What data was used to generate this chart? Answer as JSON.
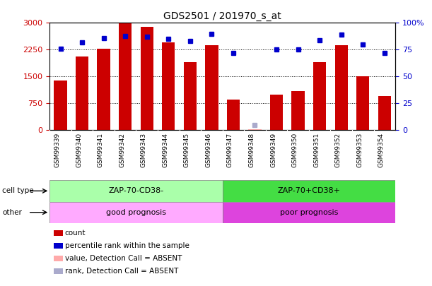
{
  "title": "GDS2501 / 201970_s_at",
  "samples": [
    "GSM99339",
    "GSM99340",
    "GSM99341",
    "GSM99342",
    "GSM99343",
    "GSM99344",
    "GSM99345",
    "GSM99346",
    "GSM99347",
    "GSM99348",
    "GSM99349",
    "GSM99350",
    "GSM99351",
    "GSM99352",
    "GSM99353",
    "GSM99354"
  ],
  "bar_values": [
    1380,
    2050,
    2280,
    3000,
    2880,
    2460,
    1900,
    2380,
    860,
    30,
    1000,
    1100,
    1900,
    2380,
    1500,
    950
  ],
  "rank_values": [
    76,
    82,
    86,
    88,
    87,
    85,
    83,
    90,
    72,
    null,
    75,
    75,
    84,
    89,
    80,
    72
  ],
  "absent_bar": [
    null,
    null,
    null,
    null,
    null,
    null,
    null,
    null,
    null,
    30,
    null,
    null,
    null,
    null,
    null,
    null
  ],
  "absent_rank": [
    null,
    null,
    null,
    null,
    null,
    null,
    null,
    null,
    null,
    5,
    null,
    null,
    null,
    null,
    null,
    null
  ],
  "bar_color": "#cc0000",
  "absent_bar_color": "#ffaaaa",
  "rank_color": "#0000cc",
  "absent_rank_color": "#aaaacc",
  "ylim_left": [
    0,
    3000
  ],
  "ylim_right": [
    0,
    100
  ],
  "yticks_left": [
    0,
    750,
    1500,
    2250,
    3000
  ],
  "ytick_labels_left": [
    "0",
    "750",
    "1500",
    "2250",
    "3000"
  ],
  "yticks_right": [
    0,
    25,
    50,
    75,
    100
  ],
  "ytick_labels_right": [
    "0",
    "25",
    "50",
    "75",
    "100%"
  ],
  "grid_lines": [
    750,
    1500,
    2250
  ],
  "cell_type_left": "ZAP-70-CD38-",
  "cell_type_right": "ZAP-70+CD38+",
  "other_left": "good prognosis",
  "other_right": "poor prognosis",
  "cell_type_left_color": "#aaffaa",
  "cell_type_right_color": "#44dd44",
  "other_left_color": "#ffaaff",
  "other_right_color": "#dd44dd",
  "split_index": 8,
  "legend_items": [
    {
      "color": "#cc0000",
      "label": "count"
    },
    {
      "color": "#0000cc",
      "label": "percentile rank within the sample"
    },
    {
      "color": "#ffaaaa",
      "label": "value, Detection Call = ABSENT"
    },
    {
      "color": "#aaaacc",
      "label": "rank, Detection Call = ABSENT"
    }
  ],
  "bar_width": 0.6,
  "bg_color": "#ffffff",
  "plot_bg_color": "#ffffff",
  "left_ylabel_color": "#cc0000",
  "right_ylabel_color": "#0000cc",
  "xtick_bg_color": "#cccccc"
}
